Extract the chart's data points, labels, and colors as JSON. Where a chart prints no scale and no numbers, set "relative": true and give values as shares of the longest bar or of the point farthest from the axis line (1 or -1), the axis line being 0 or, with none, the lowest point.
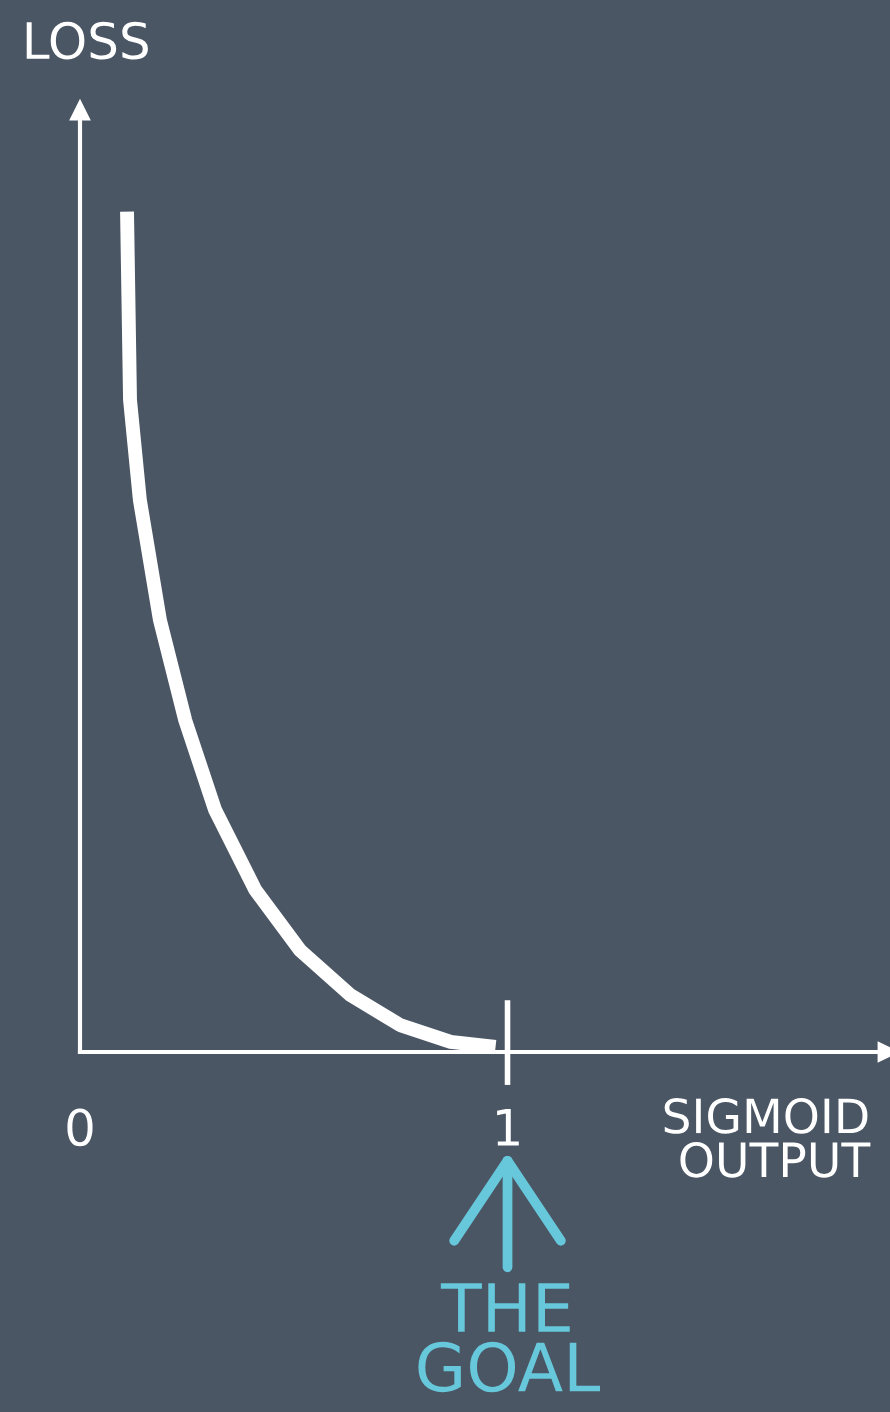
{
  "chart_data": {
    "type": "line",
    "relative": true,
    "xlabel": "SIGMOID\nOUTPUT",
    "ylabel": "LOSS",
    "x": [
      0.11,
      0.117,
      0.14,
      0.187,
      0.246,
      0.316,
      0.41,
      0.515,
      0.632,
      0.749,
      0.867,
      0.972
    ],
    "series": [
      {
        "color": "#ffffff",
        "values": [
          1.0,
          0.776,
          0.657,
          0.514,
          0.395,
          0.288,
          0.193,
          0.121,
          0.068,
          0.032,
          0.012,
          0.006
        ]
      }
    ],
    "xlim": [
      0,
      1.89
    ],
    "xticks": [
      0,
      1
    ],
    "annotations": [
      "THE GOAL"
    ],
    "grid": false,
    "legend": false,
    "marker": "none",
    "line_style": "solid"
  }
}
